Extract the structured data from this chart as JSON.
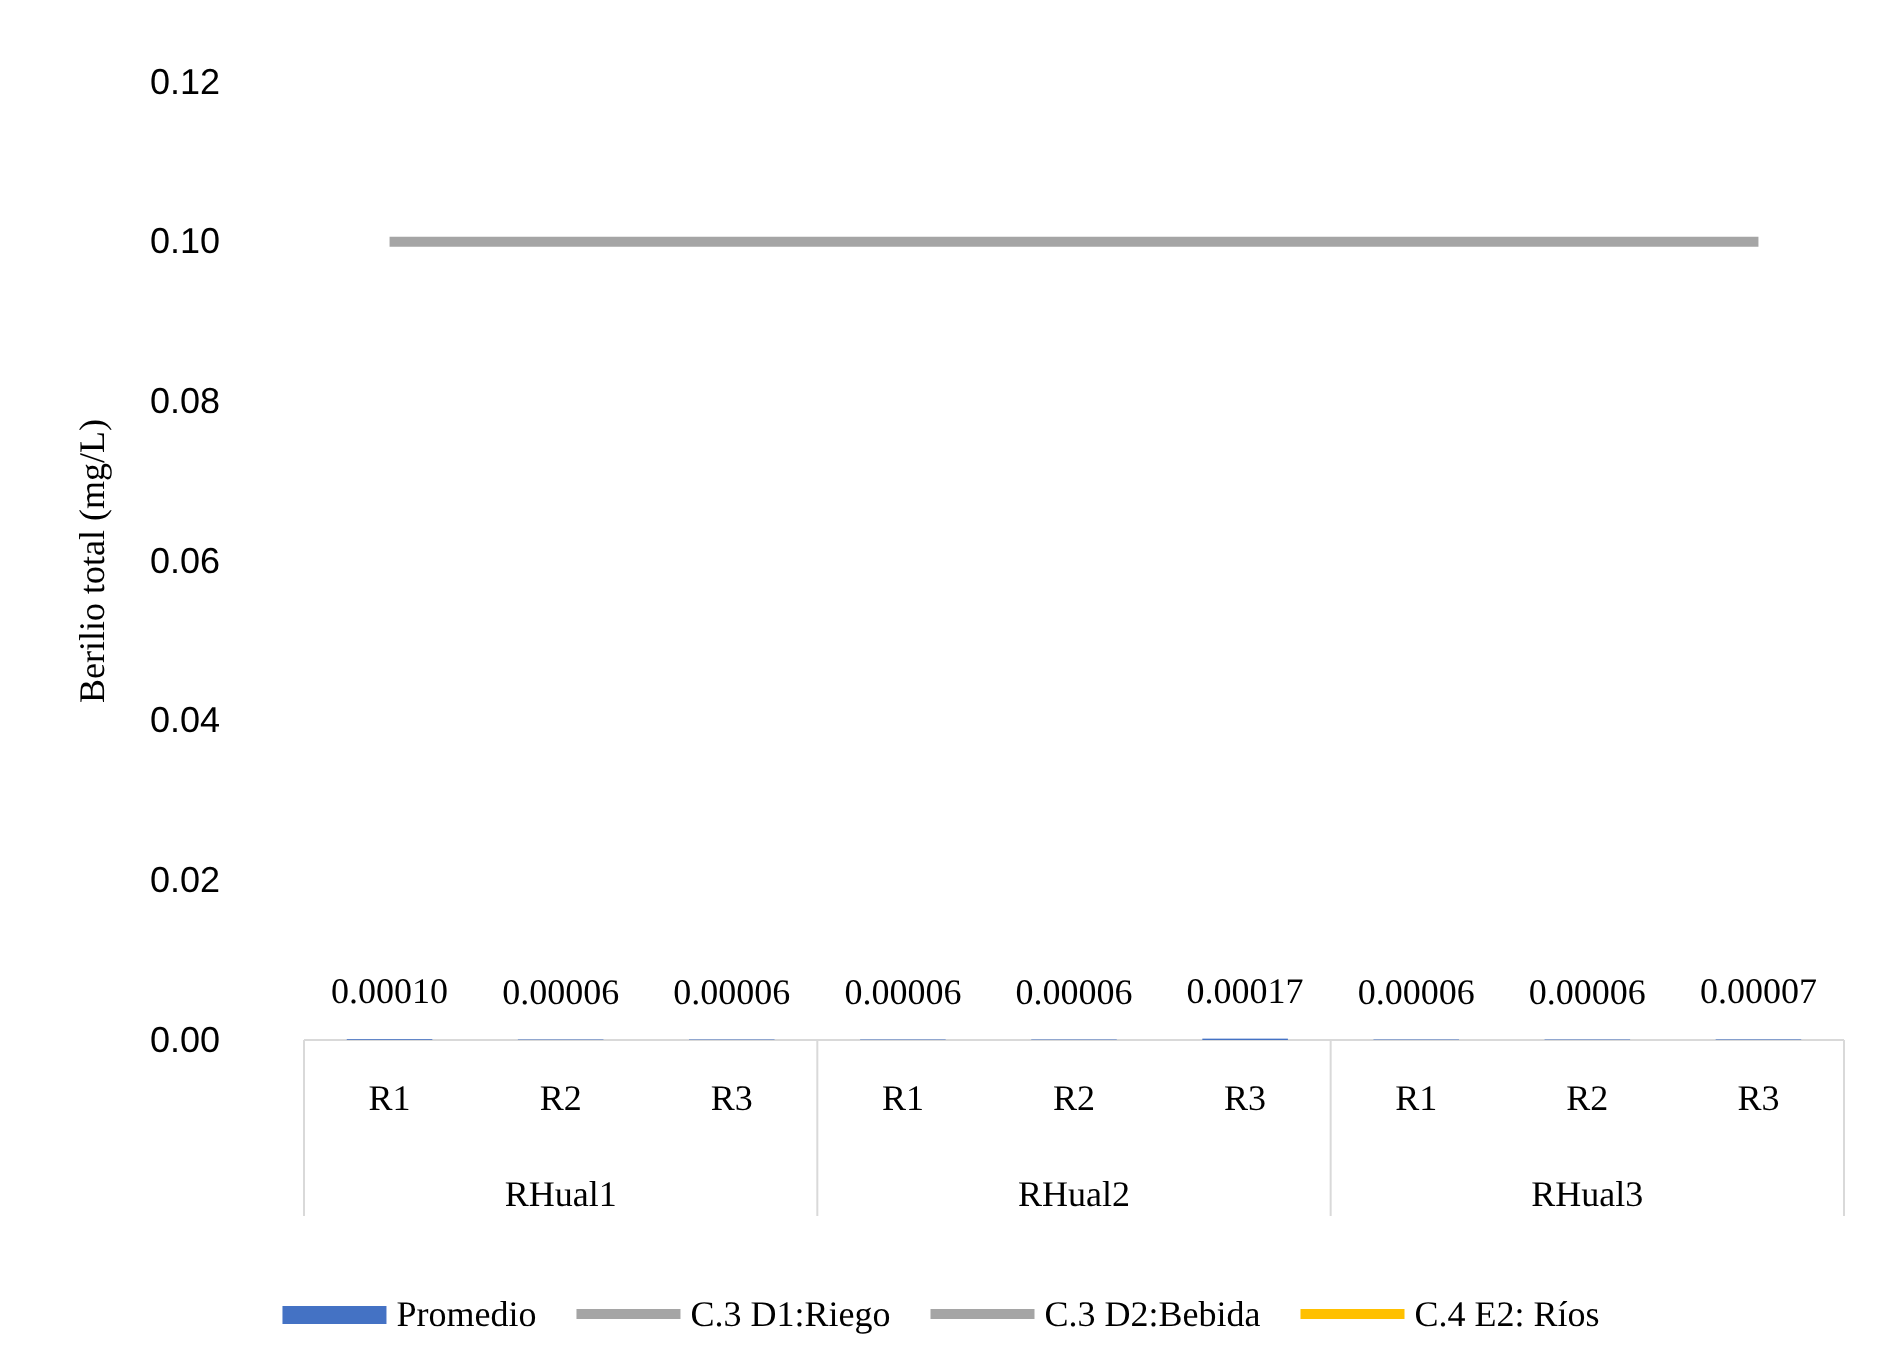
{
  "chart_data": {
    "type": "bar",
    "ylabel": "Berilio  total (mg/L)",
    "categories": [
      "R1",
      "R2",
      "R3",
      "R1",
      "R2",
      "R3",
      "R1",
      "R2",
      "R3"
    ],
    "annotations": [
      "RHual1",
      "RHual2",
      "RHual3"
    ],
    "ylim": [
      0,
      0.12
    ],
    "yticks": [
      {
        "value": 0,
        "label": "0.00"
      },
      0.02,
      0.04,
      0.06,
      0.08,
      {
        "value": 0.1,
        "label": "0.10"
      },
      0.12
    ],
    "grid": false,
    "legend": "bottom",
    "series": [
      {
        "name": "Promedio",
        "color": "#4472c4",
        "values": [
          0.0001,
          6e-05,
          6e-05,
          6e-05,
          6e-05,
          0.00017,
          6e-05,
          6e-05,
          7e-05
        ],
        "value_labels": [
          "0.00010",
          "0.00006",
          "0.00006",
          "0.00006",
          "0.00006",
          "0.00017",
          "0.00006",
          "0.00006",
          "0.00007"
        ]
      },
      {
        "name": "C.3 D1:Riego",
        "type": "line",
        "color": "#a5a5a5",
        "values": [
          null,
          null,
          null,
          null,
          null,
          null,
          null,
          null,
          null
        ]
      },
      {
        "name": "C.3 D2:Bebida",
        "type": "line",
        "color": "#a5a5a5",
        "values": [
          0.1,
          0.1,
          0.1,
          0.1,
          0.1,
          0.1,
          0.1,
          0.1,
          0.1
        ]
      },
      {
        "name": "C.4 E2: Ríos",
        "type": "line",
        "color": "#ffc000",
        "values": [
          null,
          null,
          null,
          null,
          null,
          null,
          null,
          null,
          null
        ]
      }
    ]
  }
}
